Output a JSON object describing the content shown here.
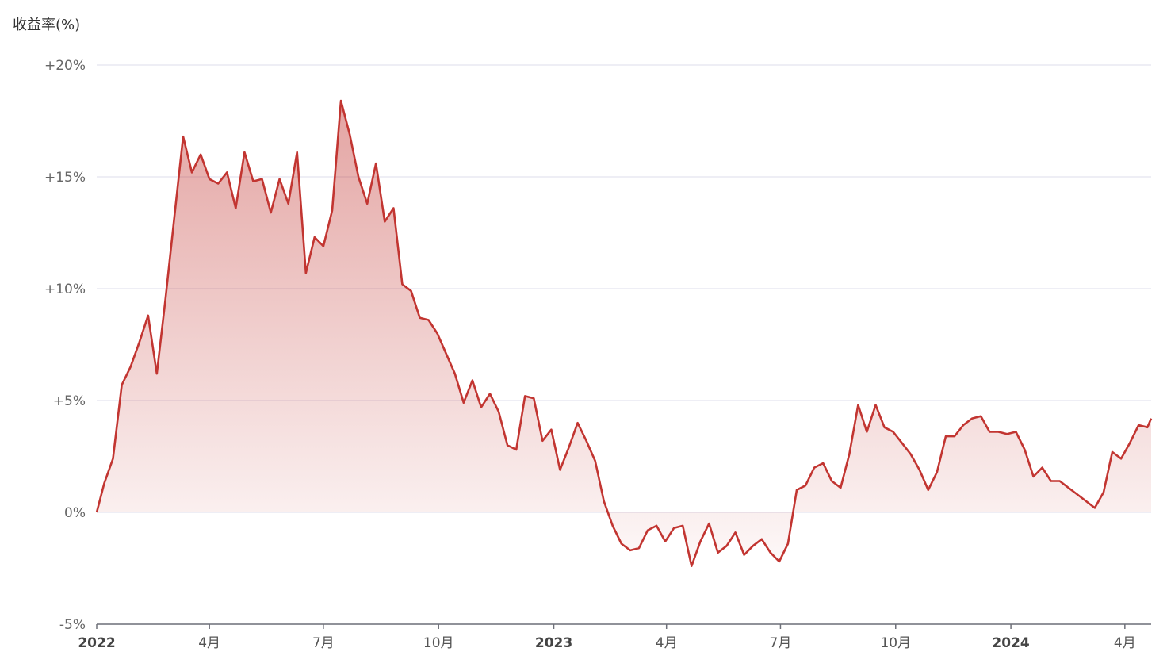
{
  "chart_data": {
    "type": "area",
    "title": "",
    "ylabel": "收益率(%)",
    "xlabel": "",
    "ylim": [
      -5,
      20
    ],
    "yticks": [
      20,
      15,
      10,
      5,
      0,
      -5
    ],
    "ytick_labels": [
      "+20%",
      "+15%",
      "+10%",
      "+5%",
      "0%",
      "-5%"
    ],
    "xlim": [
      "2022-01-01",
      "2024-04-22"
    ],
    "xticks": [
      {
        "date": "2022-01-01",
        "label": "2022",
        "major": true
      },
      {
        "date": "2022-04-01",
        "label": "4月",
        "major": false
      },
      {
        "date": "2022-07-01",
        "label": "7月",
        "major": false
      },
      {
        "date": "2022-10-01",
        "label": "10月",
        "major": false
      },
      {
        "date": "2023-01-01",
        "label": "2023",
        "major": true
      },
      {
        "date": "2023-04-01",
        "label": "4月",
        "major": false
      },
      {
        "date": "2023-07-01",
        "label": "7月",
        "major": false
      },
      {
        "date": "2023-10-01",
        "label": "10月",
        "major": false
      },
      {
        "date": "2024-01-01",
        "label": "2024",
        "major": true
      },
      {
        "date": "2024-04-01",
        "label": "4月",
        "major": false
      }
    ],
    "grid": true,
    "line_color": "#c23531",
    "series": [
      {
        "x": [
          "2022-01-01",
          "2022-01-07",
          "2022-01-14",
          "2022-01-21",
          "2022-01-28",
          "2022-02-04",
          "2022-02-11",
          "2022-02-18",
          "2022-02-25",
          "2022-03-04",
          "2022-03-11",
          "2022-03-18",
          "2022-03-25",
          "2022-04-01",
          "2022-04-08",
          "2022-04-15",
          "2022-04-22",
          "2022-04-29",
          "2022-05-06",
          "2022-05-13",
          "2022-05-20",
          "2022-05-27",
          "2022-06-03",
          "2022-06-10",
          "2022-06-17",
          "2022-06-24",
          "2022-07-01",
          "2022-07-08",
          "2022-07-15",
          "2022-07-22",
          "2022-07-29",
          "2022-08-05",
          "2022-08-12",
          "2022-08-19",
          "2022-08-26",
          "2022-09-02",
          "2022-09-09",
          "2022-09-16",
          "2022-09-23",
          "2022-09-30",
          "2022-10-07",
          "2022-10-14",
          "2022-10-21",
          "2022-10-28",
          "2022-11-04",
          "2022-11-11",
          "2022-11-18",
          "2022-11-25",
          "2022-12-02",
          "2022-12-09",
          "2022-12-16",
          "2022-12-23",
          "2022-12-30",
          "2023-01-06",
          "2023-01-13",
          "2023-01-20",
          "2023-01-27",
          "2023-02-03",
          "2023-02-10",
          "2023-02-17",
          "2023-02-24",
          "2023-03-03",
          "2023-03-10",
          "2023-03-17",
          "2023-03-24",
          "2023-03-31",
          "2023-04-07",
          "2023-04-14",
          "2023-04-21",
          "2023-04-28",
          "2023-05-05",
          "2023-05-12",
          "2023-05-19",
          "2023-05-26",
          "2023-06-02",
          "2023-06-09",
          "2023-06-16",
          "2023-06-23",
          "2023-06-30",
          "2023-07-07",
          "2023-07-14",
          "2023-07-21",
          "2023-07-28",
          "2023-08-04",
          "2023-08-11",
          "2023-08-18",
          "2023-08-25",
          "2023-09-01",
          "2023-09-08",
          "2023-09-15",
          "2023-09-22",
          "2023-09-29",
          "2023-10-06",
          "2023-10-13",
          "2023-10-20",
          "2023-10-27",
          "2023-11-03",
          "2023-11-10",
          "2023-11-17",
          "2023-11-24",
          "2023-12-01",
          "2023-12-08",
          "2023-12-15",
          "2023-12-22",
          "2023-12-29",
          "2024-01-05",
          "2024-01-12",
          "2024-01-19",
          "2024-01-26",
          "2024-02-02",
          "2024-02-09",
          "2024-02-16",
          "2024-02-23",
          "2024-03-01",
          "2024-03-08",
          "2024-03-15",
          "2024-03-22",
          "2024-03-29",
          "2024-04-05",
          "2024-04-12",
          "2024-04-19",
          "2024-04-22"
        ],
        "y": [
          0.0,
          1.3,
          2.4,
          5.7,
          6.5,
          7.6,
          8.8,
          6.2,
          9.6,
          13.2,
          16.8,
          15.2,
          16.0,
          14.9,
          14.7,
          15.2,
          13.6,
          16.1,
          14.8,
          14.9,
          13.4,
          14.9,
          13.8,
          16.1,
          10.7,
          12.3,
          11.9,
          13.5,
          18.4,
          16.9,
          15.0,
          13.8,
          15.6,
          13.0,
          13.6,
          10.2,
          9.9,
          8.7,
          8.6,
          8.0,
          7.1,
          6.2,
          4.9,
          5.9,
          4.7,
          5.3,
          4.5,
          3.0,
          2.8,
          5.2,
          5.1,
          3.2,
          3.7,
          1.9,
          2.9,
          4.0,
          3.2,
          2.3,
          0.5,
          -0.6,
          -1.4,
          -1.7,
          -1.6,
          -0.8,
          -0.6,
          -1.3,
          -0.7,
          -0.6,
          -2.4,
          -1.3,
          -0.5,
          -1.8,
          -1.5,
          -0.9,
          -1.9,
          -1.5,
          -1.2,
          -1.8,
          -2.2,
          -1.4,
          1.0,
          1.2,
          2.0,
          2.2,
          1.4,
          1.1,
          2.6,
          4.8,
          3.6,
          4.8,
          3.8,
          3.6,
          3.1,
          2.6,
          1.9,
          1.0,
          1.8,
          3.4,
          3.4,
          3.9,
          4.2,
          4.3,
          3.6,
          3.6,
          3.5,
          3.6,
          2.8,
          1.6,
          2.0,
          1.4,
          1.4,
          1.1,
          0.8,
          0.5,
          0.2,
          0.9,
          2.7,
          2.4,
          3.1,
          3.9,
          3.8,
          4.2
        ]
      }
    ]
  }
}
